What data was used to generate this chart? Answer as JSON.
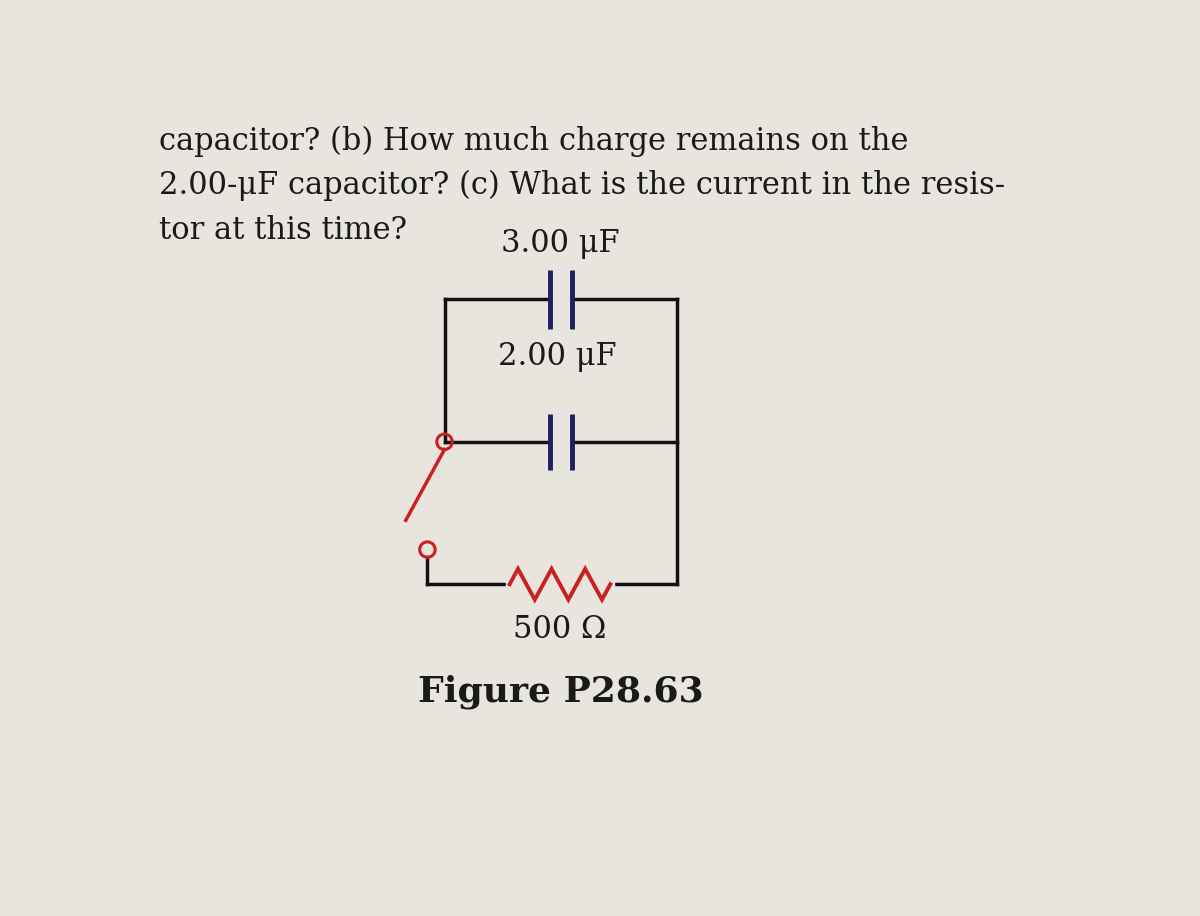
{
  "bg_color": "#e8e4de",
  "text_color": "#1a1a1a",
  "circuit_color": "#111111",
  "capacitor_color": "#1a2060",
  "resistor_color": "#cc2020",
  "switch_color": "#cc2020",
  "header_line1": "capacitor? (b) How much charge remains on the",
  "header_line2": "2.00-μF capacitor? (c) What is the current in the resis-",
  "header_line3": "tor at this time?",
  "label_cap1": "3.00 μF",
  "label_cap2": "2.00 μF",
  "label_res": "500 Ω",
  "figure_label": "Figure P28.63",
  "header_fontsize": 22,
  "label_fontsize": 22,
  "figure_fontsize": 26
}
